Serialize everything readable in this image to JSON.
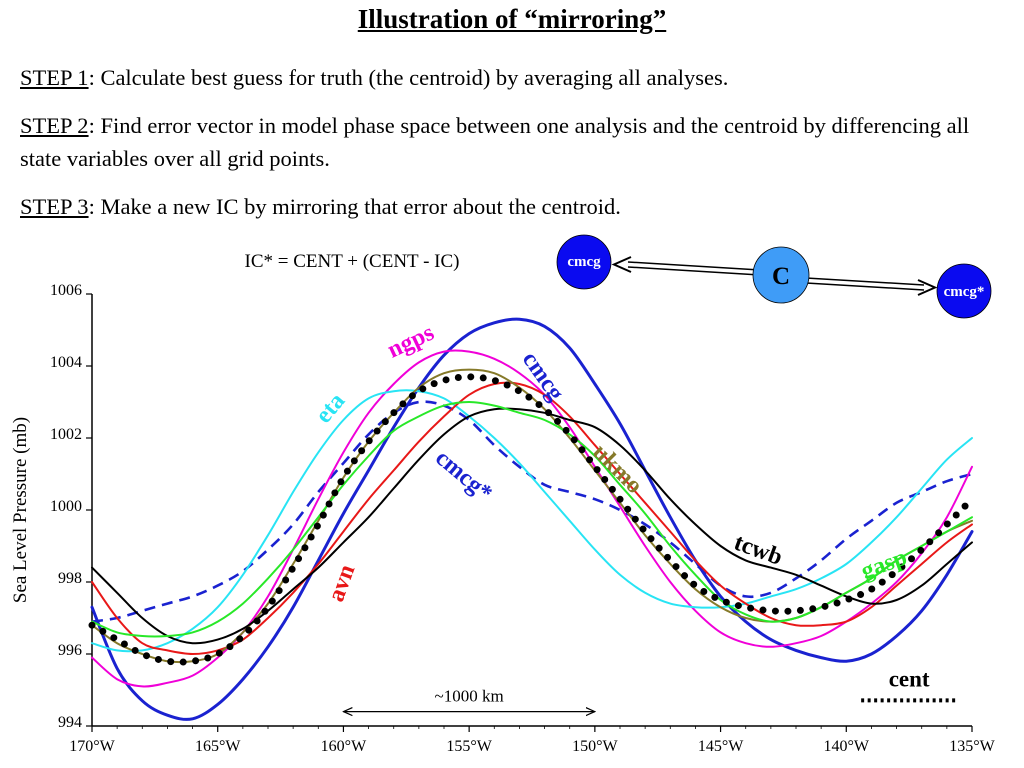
{
  "title": "Illustration of “mirroring”",
  "steps": [
    {
      "label": "STEP 1",
      "text": ":  Calculate best guess for truth (the centroid) by averaging all analyses."
    },
    {
      "label": "STEP 2",
      "text": ":  Find error vector in model phase space between one analysis and the centroid by differencing all state variables over all grid points."
    },
    {
      "label": "STEP 3",
      "text": ":  Make a new IC by mirroring that error about the centroid."
    }
  ],
  "formula": "IC* = CENT + (CENT - IC)",
  "diagram": {
    "left_circle": "cmcg",
    "center_circle": "C",
    "right_circle": "cmcg*",
    "circle_color": "#0a0af0",
    "center_color": "#3f9cf7"
  },
  "chart_data": {
    "type": "line",
    "ylabel": "Sea Level Pressure (mb)",
    "x_ticks": [
      "170°W",
      "165°W",
      "160°W",
      "155°W",
      "150°W",
      "145°W",
      "140°W",
      "135°W"
    ],
    "x_tick_values": [
      -170,
      -165,
      -160,
      -155,
      -150,
      -145,
      -140,
      -135
    ],
    "y_ticks": [
      "994",
      "996",
      "998",
      "1000",
      "1002",
      "1004",
      "1006"
    ],
    "y_tick_values": [
      994,
      996,
      998,
      1000,
      1002,
      1004,
      1006
    ],
    "xlim": [
      -170,
      -135
    ],
    "ylim": [
      994,
      1006
    ],
    "scale_bar": {
      "label": "~1000 km",
      "from": -160,
      "to": -150
    },
    "series": [
      {
        "name": "cmcg",
        "color": "#1a22d0",
        "dash": "solid",
        "label_x": -152.3,
        "label_y": 1003.6,
        "label_rot": 55,
        "x": [
          -170,
          -169,
          -168,
          -167,
          -166,
          -165,
          -164,
          -163,
          -162,
          -161,
          -160,
          -159,
          -158,
          -157,
          -156,
          -155,
          -154,
          -153,
          -152,
          -151,
          -150,
          -149,
          -148,
          -147,
          -146,
          -145,
          -144,
          -143,
          -142,
          -141,
          -140,
          -139,
          -138,
          -137,
          -136,
          -135
        ],
        "y": [
          997.3,
          995.6,
          994.7,
          994.3,
          994.2,
          994.6,
          995.3,
          996.2,
          997.3,
          998.6,
          999.9,
          1001.1,
          1002.3,
          1003.4,
          1004.3,
          1004.9,
          1005.2,
          1005.3,
          1005.1,
          1004.5,
          1003.5,
          1002.4,
          1001.1,
          999.8,
          998.6,
          997.6,
          996.9,
          996.4,
          996.1,
          995.9,
          995.8,
          996.0,
          996.5,
          997.2,
          998.2,
          999.4
        ]
      },
      {
        "name": "cmcg*",
        "color": "#1a22d0",
        "dash": "dashed",
        "label_x": -155.4,
        "label_y": 1000.8,
        "label_rot": 40,
        "x": [
          -170,
          -169,
          -168,
          -167,
          -166,
          -165,
          -164,
          -163,
          -162,
          -161,
          -160,
          -159,
          -158,
          -157,
          -156,
          -155,
          -154,
          -153,
          -152,
          -151,
          -150,
          -149,
          -148,
          -147,
          -146,
          -145,
          -144,
          -143,
          -142,
          -141,
          -140,
          -139,
          -138,
          -137,
          -136,
          -135
        ],
        "y": [
          996.9,
          997.0,
          997.2,
          997.4,
          997.6,
          997.9,
          998.3,
          998.9,
          999.6,
          1000.5,
          1001.3,
          1002.1,
          1002.7,
          1003.0,
          1002.9,
          1002.5,
          1001.8,
          1001.2,
          1000.7,
          1000.5,
          1000.3,
          1000.0,
          999.6,
          999.1,
          998.5,
          997.9,
          997.6,
          997.7,
          998.1,
          998.6,
          999.2,
          999.7,
          1000.2,
          1000.5,
          1000.8,
          1001.0
        ]
      },
      {
        "name": "ngps",
        "color": "#f000d8",
        "dash": "solid",
        "label_x": -157.2,
        "label_y": 1004.5,
        "label_rot": -25,
        "x": [
          -170,
          -169,
          -168,
          -167,
          -166,
          -165,
          -164,
          -163,
          -162,
          -161,
          -160,
          -159,
          -158,
          -157,
          -156,
          -155,
          -154,
          -153,
          -152,
          -151,
          -150,
          -149,
          -148,
          -147,
          -146,
          -145,
          -144,
          -143,
          -142,
          -141,
          -140,
          -139,
          -138,
          -137,
          -136,
          -135
        ],
        "y": [
          995.9,
          995.3,
          995.1,
          995.2,
          995.4,
          995.9,
          996.6,
          997.6,
          998.9,
          1000.3,
          1001.6,
          1002.7,
          1003.5,
          1004.1,
          1004.4,
          1004.4,
          1004.2,
          1003.8,
          1003.2,
          1002.3,
          1001.2,
          1000.1,
          999.0,
          998.0,
          997.2,
          996.6,
          996.3,
          996.2,
          996.3,
          996.5,
          996.9,
          997.4,
          998.0,
          998.8,
          999.8,
          1001.2
        ]
      },
      {
        "name": "eta",
        "color": "#28e4f4",
        "dash": "solid",
        "label_x": -160.3,
        "label_y": 1002.7,
        "label_rot": -50,
        "x": [
          -170,
          -169,
          -168,
          -167,
          -166,
          -165,
          -164,
          -163,
          -162,
          -161,
          -160,
          -159,
          -158,
          -157,
          -156,
          -155,
          -154,
          -153,
          -152,
          -151,
          -150,
          -149,
          -148,
          -147,
          -146,
          -145,
          -144,
          -143,
          -142,
          -141,
          -140,
          -139,
          -138,
          -137,
          -136,
          -135
        ],
        "y": [
          996.3,
          996.1,
          996.1,
          996.3,
          996.7,
          997.3,
          998.2,
          999.3,
          1000.5,
          1001.6,
          1002.5,
          1003.1,
          1003.3,
          1003.3,
          1003.1,
          1002.6,
          1002.0,
          1001.3,
          1000.5,
          999.7,
          998.9,
          998.2,
          997.7,
          997.4,
          997.3,
          997.3,
          997.4,
          997.6,
          997.8,
          998.1,
          998.5,
          999.1,
          999.8,
          1000.6,
          1001.4,
          1002.0
        ]
      },
      {
        "name": "avn",
        "color": "#e81818",
        "dash": "solid",
        "label_x": -159.8,
        "label_y": 997.9,
        "label_rot": -70,
        "x": [
          -170,
          -169,
          -168,
          -167,
          -166,
          -165,
          -164,
          -163,
          -162,
          -161,
          -160,
          -159,
          -158,
          -157,
          -156,
          -155,
          -154,
          -153,
          -152,
          -151,
          -150,
          -149,
          -148,
          -147,
          -146,
          -145,
          -144,
          -143,
          -142,
          -141,
          -140,
          -139,
          -138,
          -137,
          -136,
          -135
        ],
        "y": [
          998.0,
          997.0,
          996.3,
          996.1,
          996.0,
          996.1,
          996.4,
          997.0,
          997.7,
          998.5,
          999.4,
          1000.3,
          1001.1,
          1001.9,
          1002.6,
          1003.2,
          1003.5,
          1003.5,
          1003.2,
          1002.6,
          1001.8,
          1001.0,
          1000.2,
          999.4,
          998.6,
          997.9,
          997.4,
          997.0,
          996.8,
          996.8,
          996.9,
          997.3,
          997.9,
          998.5,
          999.1,
          999.6
        ]
      },
      {
        "name": "ukmo",
        "color": "#867a2a",
        "dash": "solid",
        "label_x": -149.3,
        "label_y": 1001.0,
        "label_rot": 45,
        "x": [
          -170,
          -169,
          -168,
          -167,
          -166,
          -165,
          -164,
          -163,
          -162,
          -161,
          -160,
          -159,
          -158,
          -157,
          -156,
          -155,
          -154,
          -153,
          -152,
          -151,
          -150,
          -149,
          -148,
          -147,
          -146,
          -145,
          -144,
          -143,
          -142,
          -141,
          -140,
          -139,
          -138,
          -137,
          -136,
          -135
        ],
        "y": [
          996.8,
          996.3,
          996.0,
          995.8,
          995.8,
          996.0,
          996.6,
          997.4,
          998.5,
          999.7,
          1000.9,
          1001.9,
          1002.7,
          1003.4,
          1003.8,
          1003.9,
          1003.8,
          1003.4,
          1002.8,
          1002.0,
          1001.1,
          1000.2,
          999.3,
          998.5,
          997.8,
          997.3,
          997.0,
          996.9,
          997.0,
          997.3,
          997.7,
          998.1,
          998.6,
          999.0,
          999.4,
          999.7
        ]
      },
      {
        "name": "tcwb",
        "color": "#000000",
        "dash": "solid",
        "label_x": -143.6,
        "label_y": 998.7,
        "label_rot": 20,
        "x": [
          -170,
          -169,
          -168,
          -167,
          -166,
          -165,
          -164,
          -163,
          -162,
          -161,
          -160,
          -159,
          -158,
          -157,
          -156,
          -155,
          -154,
          -153,
          -152,
          -151,
          -150,
          -149,
          -148,
          -147,
          -146,
          -145,
          -144,
          -143,
          -142,
          -141,
          -140,
          -139,
          -138,
          -137,
          -136,
          -135
        ],
        "y": [
          998.4,
          997.7,
          997.0,
          996.5,
          996.3,
          996.4,
          996.7,
          997.2,
          997.8,
          998.4,
          999.1,
          999.8,
          1000.6,
          1001.4,
          1002.1,
          1002.6,
          1002.8,
          1002.8,
          1002.7,
          1002.5,
          1002.3,
          1001.8,
          1001.1,
          1000.3,
          999.6,
          999.0,
          998.6,
          998.4,
          998.2,
          997.9,
          997.6,
          997.4,
          997.5,
          997.9,
          998.5,
          999.1
        ]
      },
      {
        "name": "gasp",
        "color": "#28e828",
        "dash": "solid",
        "label_x": -138.4,
        "label_y": 998.3,
        "label_rot": -20,
        "x": [
          -170,
          -169,
          -168,
          -167,
          -166,
          -165,
          -164,
          -163,
          -162,
          -161,
          -160,
          -159,
          -158,
          -157,
          -156,
          -155,
          -154,
          -153,
          -152,
          -151,
          -150,
          -149,
          -148,
          -147,
          -146,
          -145,
          -144,
          -143,
          -142,
          -141,
          -140,
          -139,
          -138,
          -137,
          -136,
          -135
        ],
        "y": [
          996.9,
          996.6,
          996.5,
          996.5,
          996.6,
          996.9,
          997.4,
          998.1,
          998.9,
          999.8,
          1000.7,
          1001.5,
          1002.2,
          1002.6,
          1002.9,
          1003.0,
          1002.9,
          1002.7,
          1002.5,
          1002.1,
          1001.5,
          1000.7,
          999.9,
          999.0,
          998.2,
          997.5,
          997.1,
          996.9,
          997.0,
          997.3,
          997.7,
          998.1,
          998.6,
          999.0,
          999.4,
          999.8
        ]
      },
      {
        "name": "cent",
        "color": "#000000",
        "dash": "dotted",
        "label_x": -137.5,
        "label_y": 995.1,
        "label_rot": 0,
        "x": [
          -170,
          -169,
          -168,
          -167,
          -166,
          -165,
          -164,
          -163,
          -162,
          -161,
          -160,
          -159,
          -158,
          -157,
          -156,
          -155,
          -154,
          -153,
          -152,
          -151,
          -150,
          -149,
          -148,
          -147,
          -146,
          -145,
          -144,
          -143,
          -142,
          -141,
          -140,
          -139,
          -138,
          -137,
          -136,
          -135
        ],
        "y": [
          996.8,
          996.4,
          996.0,
          995.8,
          995.8,
          996.0,
          996.5,
          997.3,
          998.4,
          999.6,
          1000.9,
          1001.9,
          1002.7,
          1003.3,
          1003.6,
          1003.7,
          1003.6,
          1003.3,
          1002.8,
          1002.1,
          1001.2,
          1000.3,
          999.4,
          998.6,
          997.9,
          997.5,
          997.3,
          997.2,
          997.2,
          997.3,
          997.5,
          997.8,
          998.3,
          998.9,
          999.6,
          1000.3
        ]
      }
    ]
  }
}
